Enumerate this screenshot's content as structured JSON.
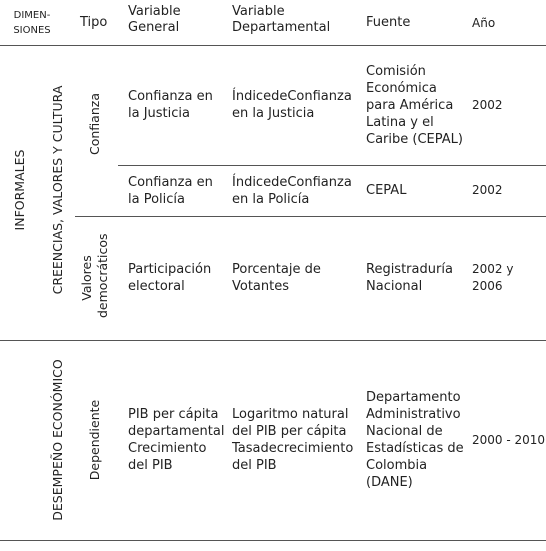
{
  "table": {
    "header": [
      "DIMEN-SIONES",
      "Tipo",
      "Variable General",
      "Variable Departamental",
      "Fuente",
      "Año"
    ],
    "dimension": "INFORMALES",
    "groups": [
      "CREENCIAS, VALORES Y CULTURA",
      "DESEMPEÑO ECONÓMICO"
    ],
    "types": [
      "Confianza",
      "Valores democráticos",
      "Dependiente"
    ],
    "rows": [
      [
        "Confianza en la Justicia",
        "ÍndicedeConfianza en la Justicia",
        "Comisión Económica para América Latina y el Caribe (CEPAL)",
        "2002"
      ],
      [
        "Confianza en la Policía",
        "ÍndicedeConfianza en la Policía",
        "CEPAL",
        "2002"
      ],
      [
        "Participación electoral",
        "Porcentaje de Votantes",
        "Registraduría Nacional",
        "2002 y 2006"
      ],
      [
        "PIB per cápita departamental Crecimiento del PIB",
        "Logaritmo natural del PIB per cápita Tasadecrecimiento del PIB",
        "Departamento Administrativo Nacional de Estadísticas de Colombia (DANE)",
        "2000 - 2010"
      ]
    ]
  }
}
